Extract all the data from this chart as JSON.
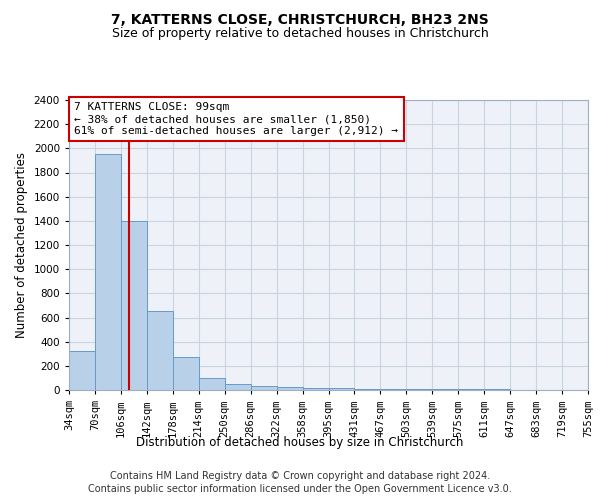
{
  "title": "7, KATTERNS CLOSE, CHRISTCHURCH, BH23 2NS",
  "subtitle": "Size of property relative to detached houses in Christchurch",
  "xlabel": "Distribution of detached houses by size in Christchurch",
  "ylabel": "Number of detached properties",
  "bar_heights": [
    320,
    1950,
    1400,
    650,
    270,
    100,
    50,
    30,
    25,
    20,
    15,
    12,
    10,
    8,
    7,
    6,
    5,
    4,
    3,
    2
  ],
  "bar_color": "#b8d0e8",
  "bar_edge_color": "#6699cc",
  "property_bar_index": 1.8,
  "property_line_color": "#cc0000",
  "annotation_box_color": "#cc0000",
  "annotation_line1": "7 KATTERNS CLOSE: 99sqm",
  "annotation_line2": "← 38% of detached houses are smaller (1,850)",
  "annotation_line3": "61% of semi-detached houses are larger (2,912) →",
  "ylim": [
    0,
    2400
  ],
  "yticks": [
    0,
    200,
    400,
    600,
    800,
    1000,
    1200,
    1400,
    1600,
    1800,
    2000,
    2200,
    2400
  ],
  "tick_labels": [
    "34sqm",
    "70sqm",
    "106sqm",
    "142sqm",
    "178sqm",
    "214sqm",
    "250sqm",
    "286sqm",
    "322sqm",
    "358sqm",
    "395sqm",
    "431sqm",
    "467sqm",
    "503sqm",
    "539sqm",
    "575sqm",
    "611sqm",
    "647sqm",
    "683sqm",
    "719sqm",
    "755sqm"
  ],
  "footer_line1": "Contains HM Land Registry data © Crown copyright and database right 2024.",
  "footer_line2": "Contains public sector information licensed under the Open Government Licence v3.0.",
  "title_fontsize": 10,
  "subtitle_fontsize": 9,
  "axis_label_fontsize": 8.5,
  "tick_fontsize": 7.5,
  "annotation_fontsize": 8,
  "footer_fontsize": 7,
  "grid_color": "#c8d4e4",
  "background_color": "#ffffff",
  "plot_bg_color": "#eef2f8"
}
